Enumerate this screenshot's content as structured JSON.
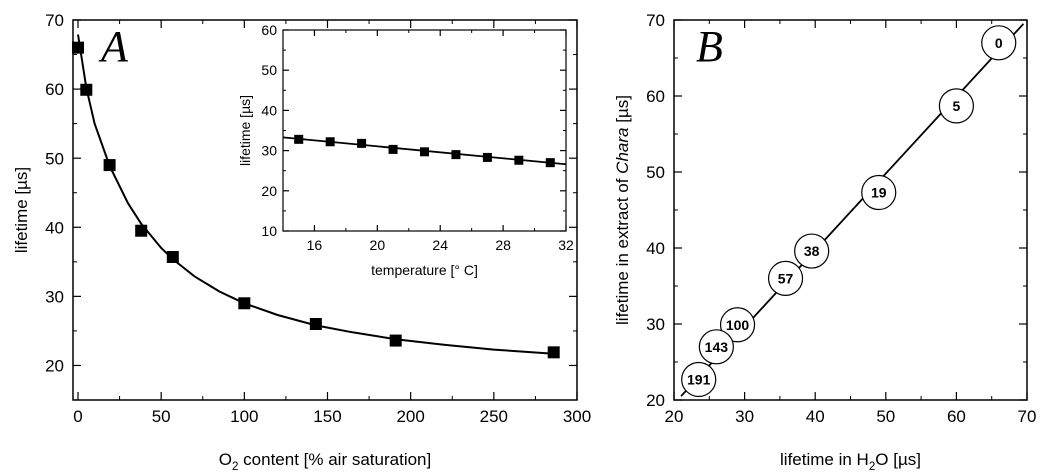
{
  "chart_data": [
    {
      "panel": "A",
      "type": "scatter",
      "title": "A",
      "xlabel": {
        "pre": "O",
        "sub": "2",
        "post": " content [% air saturation]"
      },
      "ylabel": "lifetime [µs]",
      "xlim": [
        -3,
        300
      ],
      "ylim": [
        15,
        70
      ],
      "xticks": [
        0,
        50,
        100,
        150,
        200,
        250,
        300
      ],
      "yticks": [
        20,
        30,
        40,
        50,
        60,
        70
      ],
      "marker": "square",
      "fit_line": "hyperbolic decay through points",
      "points": [
        {
          "x": 0,
          "y": 66
        },
        {
          "x": 5,
          "y": 59.9
        },
        {
          "x": 19,
          "y": 49
        },
        {
          "x": 38,
          "y": 39.5
        },
        {
          "x": 57,
          "y": 35.7
        },
        {
          "x": 100,
          "y": 29
        },
        {
          "x": 143,
          "y": 26
        },
        {
          "x": 191,
          "y": 23.6
        },
        {
          "x": 286,
          "y": 21.9
        }
      ],
      "curve": [
        {
          "x": 0,
          "y": 67.9
        },
        {
          "x": 5,
          "y": 60.2
        },
        {
          "x": 10,
          "y": 55.0
        },
        {
          "x": 19,
          "y": 48.9
        },
        {
          "x": 30,
          "y": 43.5
        },
        {
          "x": 38,
          "y": 40.5
        },
        {
          "x": 50,
          "y": 37.0
        },
        {
          "x": 57,
          "y": 35.4
        },
        {
          "x": 70,
          "y": 32.9
        },
        {
          "x": 85,
          "y": 30.7
        },
        {
          "x": 100,
          "y": 29.0
        },
        {
          "x": 120,
          "y": 27.3
        },
        {
          "x": 143,
          "y": 25.8
        },
        {
          "x": 165,
          "y": 24.8
        },
        {
          "x": 191,
          "y": 23.8
        },
        {
          "x": 220,
          "y": 23.0
        },
        {
          "x": 250,
          "y": 22.3
        },
        {
          "x": 286,
          "y": 21.7
        }
      ]
    },
    {
      "panel": "A-inset",
      "type": "scatter",
      "xlabel": "temperature [° C]",
      "ylabel": "lifetime [µs]",
      "xlim": [
        14,
        32
      ],
      "ylim": [
        10,
        60
      ],
      "xticks": [
        16,
        20,
        24,
        28,
        32
      ],
      "yticks": [
        10,
        20,
        30,
        40,
        50,
        60
      ],
      "marker": "square",
      "fit_line": "linear",
      "points": [
        {
          "x": 15,
          "y": 32.8
        },
        {
          "x": 17,
          "y": 32.2
        },
        {
          "x": 19,
          "y": 31.8
        },
        {
          "x": 21,
          "y": 30.3
        },
        {
          "x": 23,
          "y": 29.7
        },
        {
          "x": 25,
          "y": 29.0
        },
        {
          "x": 27,
          "y": 28.3
        },
        {
          "x": 29,
          "y": 27.6
        },
        {
          "x": 31,
          "y": 27.0
        }
      ],
      "line": [
        {
          "x": 14,
          "y": 33.3
        },
        {
          "x": 32,
          "y": 26.6
        }
      ]
    },
    {
      "panel": "B",
      "type": "scatter",
      "title": "B",
      "xlabel": {
        "pre": "lifetime in H",
        "sub": "2",
        "post": "O [µs]"
      },
      "ylabel": {
        "pre": "lifetime in extract of ",
        "italic": "Chara",
        "post": " [µs]"
      },
      "xlim": [
        20,
        70
      ],
      "ylim": [
        20,
        70
      ],
      "xticks": [
        20,
        30,
        40,
        50,
        60,
        70
      ],
      "yticks": [
        20,
        30,
        40,
        50,
        60,
        70
      ],
      "marker": "labeled-circle",
      "fit_line": "linear",
      "points": [
        {
          "label": "0",
          "x": 66,
          "y": 67
        },
        {
          "label": "5",
          "x": 60,
          "y": 58.7
        },
        {
          "label": "19",
          "x": 49,
          "y": 47.3
        },
        {
          "label": "38",
          "x": 39.5,
          "y": 39.6
        },
        {
          "label": "57",
          "x": 35.8,
          "y": 36
        },
        {
          "label": "100",
          "x": 29,
          "y": 29.9
        },
        {
          "label": "143",
          "x": 26,
          "y": 27
        },
        {
          "label": "191",
          "x": 23.5,
          "y": 22.7
        }
      ],
      "line": [
        {
          "x": 21,
          "y": 20.5
        },
        {
          "x": 69.5,
          "y": 69.5
        }
      ]
    }
  ]
}
